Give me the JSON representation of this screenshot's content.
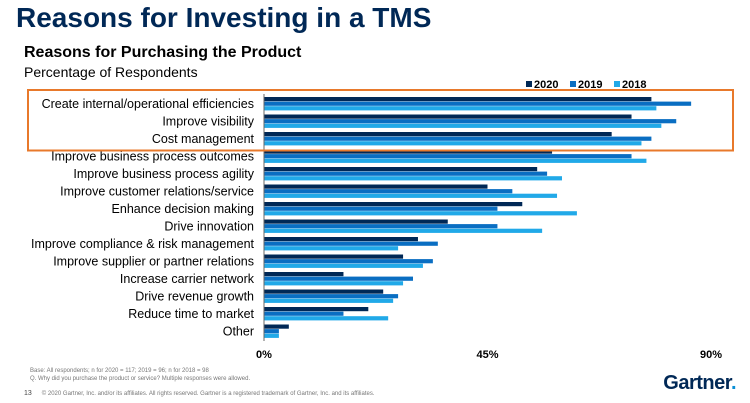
{
  "slide": {
    "title": "Reasons for Investing in a TMS",
    "chart_title": "Reasons for Purchasing the Product",
    "chart_subtitle": "Percentage of Respondents",
    "footnote_base": "Base: All respondents; n for 2020 = 117; 2019 = 96; n for 2018 = 98",
    "footnote_question": "Q. Why did you purchase the product or service? Multiple responses were allowed.",
    "page_number": "13",
    "copyright": "© 2020 Gartner, Inc. and/or its affiliates. All rights reserved. Gartner is a registered trademark of Gartner, Inc. and its affiliates.",
    "logo": "Gartner",
    "highlight_color": "#e8792b"
  },
  "chart_data": {
    "type": "bar",
    "orientation": "horizontal",
    "categories": [
      "Create internal/operational efficiencies",
      "Improve visibility",
      "Cost management",
      "Improve business process outcomes",
      "Improve business process agility",
      "Improve customer relations/service",
      "Enhance decision making",
      "Drive innovation",
      "Improve compliance & risk management",
      "Improve supplier or partner relations",
      "Increase carrier network",
      "Drive revenue growth",
      "Reduce time to market",
      "Other"
    ],
    "series": [
      {
        "name": "2020",
        "color": "#002856",
        "values": [
          78,
          74,
          70,
          58,
          55,
          45,
          52,
          37,
          31,
          28,
          16,
          24,
          21,
          5
        ]
      },
      {
        "name": "2019",
        "color": "#0a6ec2",
        "values": [
          86,
          83,
          78,
          74,
          57,
          50,
          47,
          47,
          35,
          34,
          30,
          27,
          16,
          3
        ]
      },
      {
        "name": "2018",
        "color": "#21a9e8",
        "values": [
          79,
          80,
          76,
          77,
          60,
          59,
          63,
          56,
          27,
          32,
          28,
          26,
          25,
          3
        ]
      }
    ],
    "xlim": [
      0,
      90
    ],
    "xticks": [
      "0%",
      "45%",
      "90%"
    ],
    "legend_position": "top-right",
    "highlighted_categories": [
      0,
      1,
      2
    ]
  }
}
